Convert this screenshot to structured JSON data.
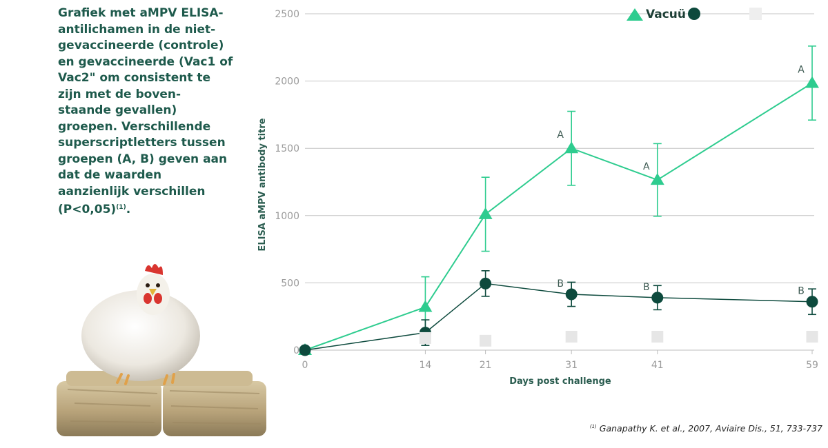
{
  "caption": {
    "text": "Grafiek met aMPV ELISA-antilichamen in de niet-gevaccineerde (controle) en gevaccineerde (Vac1 of Vac2\" om consistent te zijn met de boven-staande gevallen) groepen. Verschillende superscriptletters tussen groepen (A, B) geven aan dat de waarden aanzienlijk verschillen (P<0,05)",
    "ref": "(1)",
    "end": "."
  },
  "reference": {
    "mark": "(1)",
    "text": "Ganapathy K. et al., 2007, Aviaire Dis., 51, 733-737"
  },
  "chart_data": {
    "type": "line",
    "title": "",
    "xlabel": "Days post challenge",
    "ylabel": "ELISA aMPV antibody titre",
    "x": [
      0,
      14,
      21,
      31,
      41,
      59
    ],
    "x_tick_labels": [
      "0",
      "14",
      "21",
      "31",
      "41",
      "59"
    ],
    "ylim": [
      0,
      2500
    ],
    "y_ticks": [
      0,
      500,
      1000,
      1500,
      2000,
      2500
    ],
    "y_tick_labels": [
      "0",
      "500",
      "1000",
      "1500",
      "2000",
      "2500"
    ],
    "grid": "horizontal",
    "legend_placement": "top-right",
    "legend_text": "Vacuü 1",
    "series": [
      {
        "marker": "triangle",
        "color": "#2ecc8f",
        "values": [
          0,
          320,
          1010,
          1500,
          1265,
          1985
        ],
        "error": [
          null,
          225,
          275,
          275,
          270,
          275
        ],
        "letters": [
          null,
          null,
          null,
          "A",
          "A",
          "A"
        ]
      },
      {
        "marker": "circle",
        "color": "#0d4a3d",
        "values": [
          0,
          130,
          495,
          415,
          390,
          360
        ],
        "error": [
          null,
          95,
          95,
          90,
          90,
          95
        ],
        "letters": [
          null,
          null,
          null,
          "B",
          "B",
          "B"
        ]
      },
      {
        "marker": "square",
        "color": "#e6e6e6",
        "values": [
          null,
          90,
          70,
          100,
          100,
          100
        ],
        "error": null,
        "letters": null
      }
    ]
  }
}
